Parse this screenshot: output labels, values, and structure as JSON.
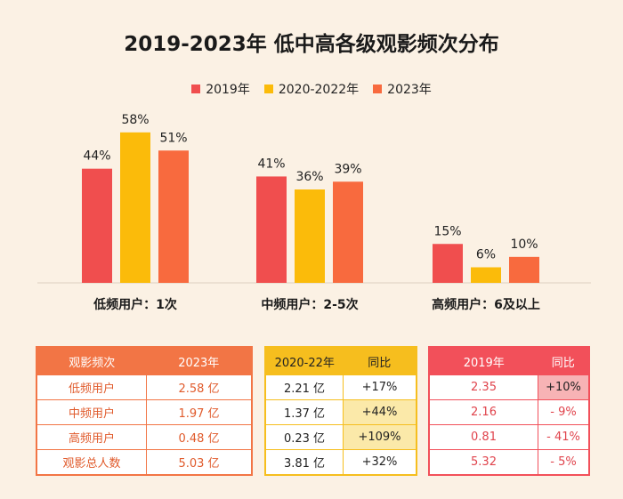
{
  "chart_data": {
    "type": "bar",
    "title": "2019-2023年 低中高各级观影频次分布",
    "categories": [
      "低频用户：1次",
      "中频用户：2-5次",
      "高频用户：6及以上"
    ],
    "series": [
      {
        "name": "2019年",
        "color": "#f04e4e",
        "values": [
          44,
          41,
          15
        ],
        "labels": [
          "44%",
          "41%",
          "15%"
        ]
      },
      {
        "name": "2020-2022年",
        "color": "#fbbb0a",
        "values": [
          58,
          36,
          6
        ],
        "labels": [
          "58%",
          "36%",
          "6%"
        ]
      },
      {
        "name": "2023年",
        "color": "#f86a3e",
        "values": [
          51,
          39,
          10
        ],
        "labels": [
          "51%",
          "39%",
          "10%"
        ]
      }
    ],
    "ylim": [
      0,
      60
    ],
    "legend": "top-center"
  },
  "tables": {
    "t1": {
      "headers": [
        "观影频次",
        "2023年"
      ],
      "rows": [
        [
          "低频用户",
          "2.58 亿"
        ],
        [
          "中频用户",
          "1.97 亿"
        ],
        [
          "高频用户",
          "0.48 亿"
        ],
        [
          "观影总人数",
          "5.03 亿"
        ]
      ]
    },
    "t2": {
      "headers": [
        "2020-22年",
        "同比"
      ],
      "rows": [
        [
          "2.21 亿",
          "+17%"
        ],
        [
          "1.37 亿",
          "+44%"
        ],
        [
          "0.23 亿",
          "+109%"
        ],
        [
          "3.81 亿",
          "+32%"
        ]
      ]
    },
    "t3": {
      "headers": [
        "2019年",
        "同比"
      ],
      "rows": [
        [
          "2.35",
          "+10%"
        ],
        [
          "2.16",
          "- 9%"
        ],
        [
          "0.81",
          "- 41%"
        ],
        [
          "5.32",
          "- 5%"
        ]
      ]
    }
  }
}
